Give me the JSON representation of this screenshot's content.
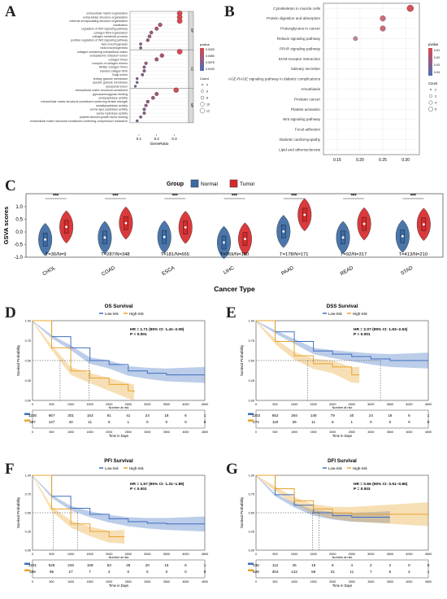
{
  "panel_labels": [
    "A",
    "B",
    "C",
    "D",
    "E",
    "F",
    "G"
  ],
  "colors": {
    "normal": "#3b6ba5",
    "tumor": "#d9292b",
    "low_risk": "#3f6fc1",
    "high_risk": "#e8a32a",
    "enrich_high": "#d94850",
    "enrich_low": "#4c6fb7",
    "grid": "#e6e6e6"
  },
  "chart_data": [
    {
      "id": "A",
      "type": "scatter",
      "xlabel": "GeneRatio",
      "xlim": [
        0.05,
        0.38
      ],
      "ticks": [
        "0.1",
        "0.2",
        "0.3"
      ],
      "facets": [
        "BP",
        "CC",
        "MF"
      ],
      "legend": {
        "pvalue_title": "pvalue",
        "pvalue_ticks": [
          "0.0025",
          "0.0050",
          "0.0075",
          "0.0100"
        ],
        "count_title": "Count",
        "count_ticks": [
          "4",
          "6",
          "8",
          "10",
          "12"
        ]
      },
      "groups": [
        {
          "facet": "BP",
          "terms": [
            [
              "extracellular matrix organization",
              0.33
            ],
            [
              "extracellular structure organization",
              0.33
            ],
            [
              "external encapsulating structure organization",
              0.33
            ],
            [
              "ossification",
              0.22
            ],
            [
              "regulation of Wnt signaling pathway",
              0.2
            ],
            [
              "collagen fibril organization",
              0.17
            ],
            [
              "collagen metabolic process",
              0.16
            ],
            [
              "positive regulation of Wnt signaling pathway",
              0.15
            ],
            [
              "face morphogenesis",
              0.11
            ],
            [
              "head morphogenesis",
              0.11
            ]
          ]
        },
        {
          "facet": "CC",
          "terms": [
            [
              "collagen-containing extracellular matrix",
              0.33
            ],
            [
              "endoplasmic reticulum lumen",
              0.23
            ],
            [
              "collagen trimer",
              0.2
            ],
            [
              "complex of collagen trimers",
              0.14
            ],
            [
              "fibrillar collagen trimer",
              0.13
            ],
            [
              "banded collagen fibril",
              0.13
            ],
            [
              "Golgi lumen",
              0.12
            ],
            [
              "tertiary granule membrane",
              0.09
            ],
            [
              "specific granule membrane",
              0.09
            ],
            [
              "lysosomal lumen",
              0.08
            ]
          ]
        },
        {
          "facet": "MF",
          "terms": [
            [
              "extracellular matrix structural constituent",
              0.31
            ],
            [
              "glycosaminoglycan binding",
              0.2
            ],
            [
              "endopeptidase activity",
              0.18
            ],
            [
              "extracellular matrix structural constituent conferring tensile strength",
              0.15
            ],
            [
              "metallopeptidase activity",
              0.14
            ],
            [
              "serine-type peptidase activity",
              0.13
            ],
            [
              "serine hydrolase activity",
              0.13
            ],
            [
              "platelet-derived growth factor binding",
              0.11
            ],
            [
              "extracellular matrix structural constituent conferring compression resistance",
              0.09
            ]
          ]
        }
      ]
    },
    {
      "id": "B",
      "type": "scatter",
      "xlim": [
        0.12,
        0.33
      ],
      "ticks": [
        "0.15",
        "0.20",
        "0.25",
        "0.30"
      ],
      "legend": {
        "pvalue_title": "pvalue",
        "pvalue_ticks": [
          "0.01",
          "0.02",
          "0.03",
          "0.04"
        ],
        "count_title": "Count",
        "count_ticks": [
          "2",
          "3",
          "4",
          "5"
        ]
      },
      "terms": [
        [
          "Cytoskeleton in muscle cells",
          0.31
        ],
        [
          "Protein digestion and absorption",
          0.25
        ],
        [
          "Proteoglycans in cancer",
          0.25
        ],
        [
          "Relaxin signaling pathway",
          0.19
        ],
        [
          "PPAR signaling pathway",
          0.13
        ],
        [
          "ECM-receptor interaction",
          0.13
        ],
        [
          "Salivary secretion",
          0.13
        ],
        [
          "AGE-RAGE signaling pathway in diabetic complications",
          0.13
        ],
        [
          "Amoebiasis",
          0.13
        ],
        [
          "Prostate cancer",
          0.13
        ],
        [
          "Platelet activation",
          0.13
        ],
        [
          "Wnt signaling pathway",
          0.13
        ],
        [
          "Focal adhesion",
          0.13
        ],
        [
          "Diabetic cardiomyopathy",
          0.13
        ],
        [
          "Lipid and atherosclerosis",
          0.13
        ]
      ]
    },
    {
      "id": "C",
      "type": "violin",
      "legend_title": "Group",
      "series": [
        "Normal",
        "Tumor"
      ],
      "ylabel": "GSVA scores",
      "xlabel": "Cancer Type",
      "ylim": [
        -1.0,
        1.0
      ],
      "yticks": [
        "-1.0",
        "-0.5",
        "0.0",
        "0.5",
        "1.0"
      ],
      "categories": [
        "CHOL",
        "COAD",
        "ESCA",
        "LIHC",
        "PAAD",
        "READ",
        "STAD"
      ],
      "counts": [
        "T=36/N=9",
        "T=287/N=348",
        "T=181/N=665",
        "T=369/N=160",
        "T=178/N=171",
        "T=92/N=317",
        "T=413/N=210"
      ],
      "significance": [
        "***",
        "***",
        "***",
        "***",
        "***",
        "***",
        "***"
      ],
      "normal_median": [
        -0.3,
        -0.22,
        -0.2,
        -0.42,
        0.02,
        -0.22,
        -0.17
      ],
      "tumor_median": [
        0.2,
        0.35,
        0.18,
        -0.28,
        0.68,
        0.32,
        0.3
      ]
    },
    {
      "id": "D",
      "type": "line",
      "title": "OS Survival",
      "series": [
        "Low-risk",
        "High-risk"
      ],
      "hr": "HR = 1.71 (95% CI: 1.41~2.09)",
      "p": "P < 0.001",
      "ylabel": "Survival Probability",
      "xlabel": "Time in Days",
      "xticks": [
        "0",
        "500",
        "1000",
        "1500",
        "2000",
        "2500",
        "3000",
        "3500",
        "4000",
        "4500"
      ],
      "yticks": [
        "0.00",
        "0.25",
        "0.50",
        "0.75",
        "1.00"
      ],
      "median_days": [
        720,
        1470
      ],
      "low_risk": [
        [
          0,
          1.0
        ],
        [
          500,
          0.8
        ],
        [
          1000,
          0.66
        ],
        [
          1500,
          0.5
        ],
        [
          2000,
          0.45
        ],
        [
          2500,
          0.37
        ],
        [
          3000,
          0.34
        ],
        [
          3500,
          0.32
        ],
        [
          4500,
          0.32
        ]
      ],
      "high_risk": [
        [
          0,
          1.0
        ],
        [
          500,
          0.66
        ],
        [
          1000,
          0.37
        ],
        [
          1500,
          0.28
        ],
        [
          2000,
          0.2
        ],
        [
          2500,
          0.12
        ],
        [
          2650,
          0.1
        ]
      ],
      "risk_table_title": "Number at risk",
      "risk_low": [
        "1230",
        "667",
        "301",
        "153",
        "81",
        "41",
        "24",
        "18",
        "6",
        "1"
      ],
      "risk_high": [
        "307",
        "127",
        "40",
        "11",
        "6",
        "1",
        "0",
        "0",
        "0",
        "0"
      ]
    },
    {
      "id": "E",
      "type": "line",
      "title": "DSS Survival",
      "series": [
        "Low-risk",
        "High-risk"
      ],
      "hr": "HR = 2.07 (95% CI: 1.63~2.63)",
      "p": "P < 0.001",
      "ylabel": "Survival Probability",
      "xlabel": "Time in Days",
      "xticks": [
        "0",
        "500",
        "1000",
        "1500",
        "2000",
        "2500",
        "3000",
        "3500",
        "4000",
        "4500"
      ],
      "yticks": [
        "0.00",
        "0.25",
        "0.50",
        "0.75",
        "1.00"
      ],
      "median_days": [
        1350,
        3250
      ],
      "low_risk": [
        [
          0,
          1.0
        ],
        [
          500,
          0.86
        ],
        [
          1000,
          0.74
        ],
        [
          1500,
          0.62
        ],
        [
          2000,
          0.58
        ],
        [
          2500,
          0.55
        ],
        [
          3000,
          0.52
        ],
        [
          3500,
          0.5
        ],
        [
          4500,
          0.5
        ]
      ],
      "high_risk": [
        [
          0,
          1.0
        ],
        [
          500,
          0.74
        ],
        [
          1000,
          0.56
        ],
        [
          1500,
          0.46
        ],
        [
          2000,
          0.42
        ],
        [
          2500,
          0.32
        ],
        [
          2700,
          0.32
        ]
      ],
      "risk_table_title": "Number at risk",
      "risk_low": [
        "1203",
        "652",
        "294",
        "148",
        "79",
        "40",
        "24",
        "18",
        "6",
        "1"
      ],
      "risk_high": [
        "274",
        "119",
        "36",
        "11",
        "6",
        "1",
        "0",
        "0",
        "0",
        "0"
      ]
    },
    {
      "id": "F",
      "type": "line",
      "title": "PFI Survival",
      "series": [
        "Low-risk",
        "High-risk"
      ],
      "hr": "HR = 1.57 (95% CI: 1.31~1.89)",
      "p": "P < 0.001",
      "ylabel": "Survival Probability",
      "xlabel": "Time in Days",
      "xticks": [
        "0",
        "500",
        "1000",
        "1500",
        "2000",
        "2500",
        "3000",
        "3500",
        "4000",
        "4500"
      ],
      "yticks": [
        "0.00",
        "0.25",
        "0.50",
        "0.75",
        "1.00"
      ],
      "median_days": [
        540,
        1180
      ],
      "low_risk": [
        [
          0,
          1.0
        ],
        [
          500,
          0.72
        ],
        [
          1000,
          0.56
        ],
        [
          1500,
          0.48
        ],
        [
          2000,
          0.42
        ],
        [
          2500,
          0.38
        ],
        [
          3000,
          0.36
        ],
        [
          3500,
          0.35
        ],
        [
          4500,
          0.35
        ]
      ],
      "high_risk": [
        [
          0,
          1.0
        ],
        [
          500,
          0.55
        ],
        [
          1000,
          0.35
        ],
        [
          1500,
          0.25
        ],
        [
          2000,
          0.18
        ],
        [
          2400,
          0.18
        ]
      ],
      "risk_table_title": "Number at risk",
      "risk_low": [
        "1231",
        "528",
        "226",
        "108",
        "53",
        "28",
        "20",
        "16",
        "6",
        "1"
      ],
      "risk_high": [
        "308",
        "95",
        "27",
        "7",
        "2",
        "0",
        "0",
        "0",
        "0",
        "0"
      ]
    },
    {
      "id": "G",
      "type": "line",
      "title": "DFI Survival",
      "series": [
        "Low-risk",
        "High-risk"
      ],
      "hr": "HR = 0.66 (95% CI: 0.51~0.86)",
      "p": "P = 0.003",
      "ylabel": "Survival Probability",
      "xlabel": "Time in Days",
      "xticks": [
        "0",
        "500",
        "1000",
        "1500",
        "2000",
        "2500",
        "3000",
        "3500",
        "4000",
        "4500"
      ],
      "yticks": [
        "0.00",
        "0.25",
        "0.50",
        "0.75",
        "1.00"
      ],
      "median_days": [
        1480,
        1650
      ],
      "low_risk": [
        [
          0,
          1.0
        ],
        [
          500,
          0.74
        ],
        [
          1000,
          0.6
        ],
        [
          1500,
          0.5
        ],
        [
          2000,
          0.46
        ],
        [
          2500,
          0.44
        ],
        [
          3000,
          0.44
        ],
        [
          3500,
          0.44
        ]
      ],
      "high_risk": [
        [
          0,
          1.0
        ],
        [
          500,
          0.82
        ],
        [
          1000,
          0.66
        ],
        [
          1500,
          0.55
        ],
        [
          2000,
          0.5
        ],
        [
          2500,
          0.48
        ],
        [
          3000,
          0.48
        ],
        [
          4500,
          0.48
        ]
      ],
      "risk_table_title": "Number at risk",
      "risk_low": [
        "236",
        "112",
        "45",
        "19",
        "6",
        "4",
        "2",
        "2",
        "0",
        "0"
      ],
      "risk_high": [
        "628",
        "304",
        "142",
        "59",
        "31",
        "11",
        "7",
        "5",
        "2",
        "1"
      ]
    }
  ]
}
